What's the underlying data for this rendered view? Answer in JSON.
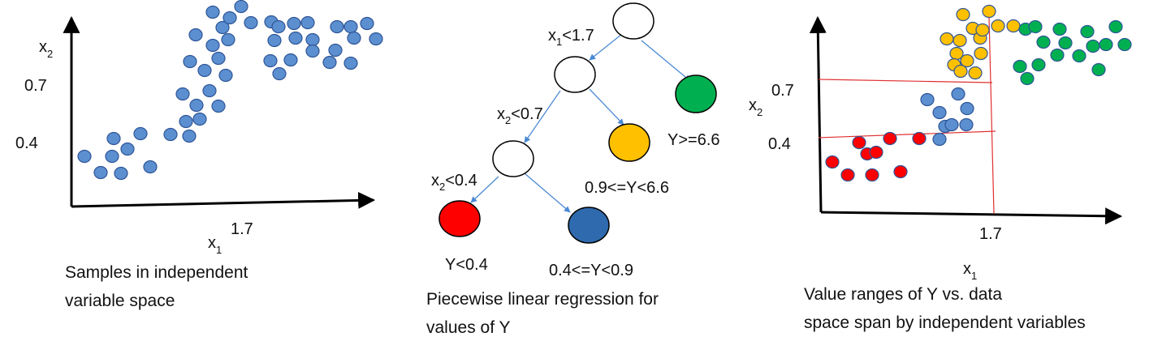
{
  "panels": {
    "left": {
      "axis_x": {
        "base": "x",
        "sub": "1"
      },
      "axis_y": {
        "base": "x",
        "sub": "2"
      },
      "tick_x": "1.7",
      "tick_y_high": "0.7",
      "tick_y_low": "0.4",
      "caption_lines": [
        "Samples in independent",
        "variable space"
      ]
    },
    "middle": {
      "split_root": {
        "base": "x",
        "sub": "1",
        "rest": "<1.7"
      },
      "split_mid": {
        "base": "x",
        "sub": "2",
        "rest": "<0.7"
      },
      "split_low": {
        "base": "x",
        "sub": "2",
        "rest": "<0.4"
      },
      "leaf_labels": {
        "green": "Y>=6.6",
        "orange": "0.9<=Y<6.6",
        "red": "Y<0.4",
        "blue": "0.4<=Y<0.9"
      },
      "caption_lines": [
        "Piecewise linear regression for",
        "values of Y"
      ]
    },
    "right": {
      "axis_x": {
        "base": "x",
        "sub": "1"
      },
      "axis_y": {
        "base": "x",
        "sub": "2"
      },
      "tick_x": "1.7",
      "tick_y_high": "0.7",
      "tick_y_low": "0.4",
      "caption_lines": [
        "Value ranges of Y vs. data",
        "space span by independent  variables"
      ]
    }
  },
  "colors": {
    "blue": "#5b8fd0",
    "blue_dark": "#2e6aad",
    "orange": "#ffc000",
    "green": "#00b050",
    "red": "#ff0000",
    "edge": "#4a8ad4",
    "divider": "#e03030"
  }
}
